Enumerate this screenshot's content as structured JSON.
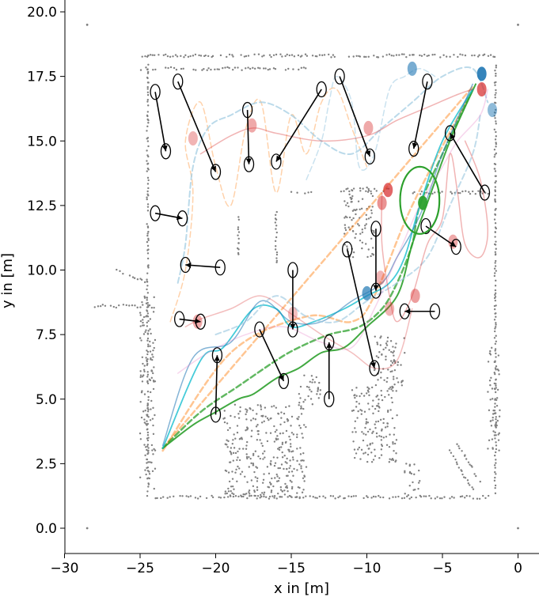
{
  "chart_data": {
    "type": "scatter",
    "title": "",
    "xlabel": "x in [m]",
    "ylabel": "y in [m]",
    "xlim": [
      -30,
      1.5
    ],
    "ylim": [
      -0.8,
      20.5
    ],
    "xticks": [
      -30,
      -25,
      -20,
      -15,
      -10,
      -5,
      0
    ],
    "xtick_labels": [
      "−30",
      "−25",
      "−20",
      "−15",
      "−10",
      "−5",
      "0"
    ],
    "yticks": [
      0.0,
      2.5,
      5.0,
      7.5,
      10.0,
      12.5,
      15.0,
      17.5,
      20.0
    ],
    "ytick_labels": [
      "0.0",
      "2.5",
      "5.0",
      "7.5",
      "10.0",
      "12.5",
      "15.0",
      "17.5",
      "20.0"
    ],
    "grid": false,
    "legend": "none",
    "colors": {
      "map_points": "#808080",
      "blue": "#1f77b4",
      "orange": "#ff7f0e",
      "green": "#2ca02c",
      "red": "#d62728",
      "cyan": "#17becf",
      "pink": "#e377c2",
      "light_blue": "#9ecae1",
      "marker": "#000000"
    },
    "boundary_points": [
      [
        -28.5,
        19.5
      ],
      [
        -28.5,
        0.0
      ],
      [
        0.0,
        19.5
      ],
      [
        0.0,
        0.0
      ]
    ],
    "map_walls": [
      {
        "from": [
          -25.0,
          18.3
        ],
        "to": [
          -1.5,
          18.3
        ]
      },
      {
        "from": [
          -25.0,
          17.8
        ],
        "to": [
          -14.0,
          17.8
        ]
      },
      {
        "from": [
          -24.5,
          18.3
        ],
        "to": [
          -24.5,
          1.3
        ]
      },
      {
        "from": [
          -1.5,
          18.0
        ],
        "to": [
          -1.5,
          1.3
        ]
      },
      {
        "from": [
          -24.0,
          1.2
        ],
        "to": [
          -2.0,
          1.2
        ]
      },
      {
        "from": [
          -26.5,
          10.0
        ],
        "to": [
          -24.5,
          9.5
        ]
      },
      {
        "from": [
          -28.0,
          8.6
        ],
        "to": [
          -24.5,
          8.6
        ]
      },
      {
        "from": [
          -7.0,
          13.0
        ],
        "to": [
          -1.8,
          13.0
        ]
      },
      {
        "from": [
          -12.0,
          13.1
        ],
        "to": [
          -8.5,
          13.1
        ]
      },
      {
        "from": [
          -18.5,
          12.2
        ],
        "to": [
          -18.5,
          10.6
        ]
      },
      {
        "from": [
          -16.0,
          12.2
        ],
        "to": [
          -16.0,
          10.2
        ]
      },
      {
        "from": [
          -4.0,
          3.3
        ],
        "to": [
          -2.5,
          1.8
        ]
      },
      {
        "from": [
          -4.5,
          3.0
        ],
        "to": [
          -3.0,
          1.5
        ]
      },
      {
        "from": [
          -15.0,
          13.0
        ],
        "to": [
          -13.5,
          13.0
        ]
      }
    ],
    "map_blocks": [
      {
        "x": [
          -25.0,
          -24.0
        ],
        "y": [
          1.5,
          9.0
        ]
      },
      {
        "x": [
          -19.5,
          -14.0
        ],
        "y": [
          1.2,
          4.8
        ]
      },
      {
        "x": [
          -11.5,
          -9.5
        ],
        "y": [
          10.5,
          13.2
        ]
      },
      {
        "x": [
          -14.5,
          -13.0
        ],
        "y": [
          4.8,
          6.0
        ]
      },
      {
        "x": [
          -11.0,
          -8.0
        ],
        "y": [
          2.5,
          5.5
        ]
      },
      {
        "x": [
          -9.5,
          -7.5
        ],
        "y": [
          5.5,
          7.5
        ]
      },
      {
        "x": [
          -2.0,
          -1.2
        ],
        "y": [
          3.0,
          7.0
        ]
      },
      {
        "x": [
          -7.5,
          -6.5
        ],
        "y": [
          1.2,
          2.5
        ]
      }
    ],
    "series": [
      {
        "color": "#ff7f0e",
        "alpha": 0.45,
        "dashed": true,
        "width": 2.5,
        "x": [
          -23.5,
          -19.0,
          -14.0,
          -11.0,
          -9.5,
          -7.0,
          -3.0
        ],
        "y": [
          3.0,
          6.8,
          8.2,
          8.0,
          9.0,
          12.5,
          17.0
        ]
      },
      {
        "color": "#ff7f0e",
        "alpha": 0.45,
        "dashed": true,
        "width": 2.5,
        "x": [
          -23.5,
          -3.0
        ],
        "y": [
          3.1,
          17.1
        ]
      },
      {
        "color": "#ff7f0e",
        "alpha": 0.35,
        "dashed": true,
        "width": 1.5,
        "x": [
          -23.0,
          -22.0,
          -21.5,
          -22.0,
          -21.0,
          -20.0,
          -19.0,
          -18.0,
          -17.0,
          -16.0,
          -15.0,
          -14.0,
          -13.0,
          -12.0,
          -11.0,
          -10.0
        ],
        "y": [
          8.0,
          10.0,
          13.0,
          15.0,
          16.5,
          14.0,
          12.5,
          15.5,
          16.5,
          13.0,
          16.0,
          14.5,
          16.5,
          17.0,
          15.5,
          14.0
        ]
      },
      {
        "color": "#2ca02c",
        "alpha": 0.9,
        "dashed": false,
        "width": 2.0,
        "x": [
          -23.5,
          -21.5,
          -20.0,
          -18.5,
          -17.5,
          -16.0,
          -14.5,
          -13.0,
          -11.5,
          -10.0,
          -8.0,
          -7.0,
          -6.0,
          -4.5,
          -2.8
        ],
        "y": [
          3.1,
          4.0,
          4.5,
          5.0,
          5.2,
          5.8,
          6.2,
          6.8,
          7.0,
          7.8,
          9.0,
          11.0,
          12.6,
          15.0,
          17.2
        ]
      },
      {
        "color": "#2ca02c",
        "alpha": 0.75,
        "dashed": true,
        "width": 2.5,
        "x": [
          -23.5,
          -21.0,
          -18.5,
          -16.0,
          -14.5,
          -12.5,
          -10.5,
          -9.0,
          -8.0,
          -7.0,
          -6.5,
          -5.0,
          -3.0
        ],
        "y": [
          3.1,
          4.5,
          5.5,
          6.5,
          7.0,
          7.5,
          7.8,
          8.5,
          9.5,
          11.0,
          12.5,
          14.5,
          17.0
        ]
      },
      {
        "color": "#17becf",
        "alpha": 0.8,
        "dashed": false,
        "width": 1.8,
        "x": [
          -23.5,
          -21.0,
          -19.5,
          -17.5,
          -16.0,
          -15.0,
          -13.5,
          -11.5,
          -10.0,
          -8.5,
          -7.5,
          -6.5,
          -5.0,
          -3.0
        ],
        "y": [
          3.1,
          6.5,
          7.0,
          8.5,
          8.5,
          7.8,
          8.0,
          8.5,
          9.0,
          9.5,
          10.5,
          12.5,
          15.0,
          17.0
        ]
      },
      {
        "color": "#1f77b4",
        "alpha": 0.55,
        "dashed": false,
        "width": 1.5,
        "x": [
          -23.5,
          -21.5,
          -19.0,
          -17.0,
          -15.0,
          -13.0,
          -11.0,
          -9.0,
          -8.0,
          -7.0,
          -6.0,
          -5.0,
          -3.0
        ],
        "y": [
          3.2,
          6.6,
          7.2,
          8.8,
          8.0,
          8.0,
          8.8,
          9.5,
          10.5,
          11.5,
          12.8,
          14.5,
          17.2
        ]
      },
      {
        "color": "#9ecae1",
        "alpha": 0.7,
        "dashed": true,
        "width": 2.0,
        "x": [
          -22.5,
          -22.0,
          -21.5,
          -20.5,
          -19.0,
          -17.0,
          -15.0,
          -13.0,
          -11.0,
          -9.0,
          -7.0,
          -5.0,
          -3.0,
          -2.0
        ],
        "y": [
          9.5,
          11.0,
          14.0,
          15.5,
          16.0,
          16.5,
          16.0,
          15.0,
          14.5,
          15.5,
          16.5,
          17.5,
          17.8,
          16.5
        ]
      },
      {
        "color": "#9ecae1",
        "alpha": 0.65,
        "dashed": true,
        "width": 2.0,
        "x": [
          -20.0,
          -18.0,
          -16.0,
          -14.0,
          -12.0,
          -10.0,
          -8.0,
          -6.0,
          -4.5,
          -3.0,
          -2.5
        ],
        "y": [
          7.5,
          8.0,
          9.0,
          8.2,
          8.0,
          8.8,
          9.5,
          10.5,
          12.5,
          14.5,
          16.0
        ]
      },
      {
        "color": "#9ecae1",
        "alpha": 0.55,
        "dashed": true,
        "width": 1.5,
        "x": [
          -14.0,
          -13.0,
          -12.5,
          -12.0,
          -11.0,
          -10.5,
          -9.5,
          -8.5,
          -7.5,
          -6.5,
          -5.5
        ],
        "y": [
          13.5,
          15.0,
          16.5,
          17.5,
          16.5,
          14.0,
          14.5,
          17.0,
          17.5,
          17.8,
          17.5
        ]
      },
      {
        "color": "#d62728",
        "alpha": 0.35,
        "dashed": false,
        "width": 1.5,
        "x": [
          -21.0,
          -19.0,
          -17.5,
          -16.0,
          -13.0,
          -10.0,
          -8.0,
          -6.0,
          -4.0,
          -3.0
        ],
        "y": [
          14.5,
          15.2,
          15.5,
          15.3,
          15.0,
          15.2,
          15.8,
          16.3,
          16.8,
          17.0
        ]
      },
      {
        "color": "#d62728",
        "alpha": 0.35,
        "dashed": false,
        "width": 1.5,
        "x": [
          -9.0,
          -9.0,
          -8.5,
          -8.0,
          -7.0,
          -6.0,
          -5.0,
          -4.5,
          -4.0,
          -3.5,
          -2.5,
          -2.0,
          -2.5,
          -3.5
        ],
        "y": [
          13.0,
          11.0,
          9.0,
          8.0,
          9.0,
          11.0,
          12.0,
          14.5,
          13.0,
          11.0,
          10.5,
          11.5,
          13.5,
          15.0
        ]
      },
      {
        "color": "#d62728",
        "alpha": 0.3,
        "dashed": false,
        "width": 1.5,
        "x": [
          -22.0,
          -21.0,
          -19.0,
          -17.0,
          -15.0,
          -13.0,
          -11.0,
          -9.5,
          -8.0,
          -7.0
        ],
        "y": [
          7.8,
          8.1,
          8.5,
          9.0,
          8.3,
          7.5,
          6.8,
          6.2,
          6.5,
          8.5
        ]
      },
      {
        "color": "#e377c2",
        "alpha": 0.3,
        "dashed": false,
        "width": 1.5,
        "x": [
          -22.5,
          -20.5,
          -18.0,
          -15.5,
          -13.0,
          -11.0,
          -9.5,
          -8.0,
          -6.5,
          -5.0,
          -4.0,
          -2.5,
          -2.0
        ],
        "y": [
          6.0,
          6.8,
          7.5,
          7.8,
          7.2,
          7.0,
          8.5,
          10.5,
          12.5,
          14.0,
          15.0,
          16.0,
          17.0
        ]
      }
    ],
    "agents": [
      {
        "x": -7.0,
        "y": 17.8,
        "color": "#1f77b4",
        "alpha": 0.6
      },
      {
        "x": -2.4,
        "y": 17.6,
        "color": "#1f77b4",
        "alpha": 0.9
      },
      {
        "x": -1.7,
        "y": 16.2,
        "color": "#1f77b4",
        "alpha": 0.5
      },
      {
        "x": -10.0,
        "y": 9.1,
        "color": "#1f77b4",
        "alpha": 0.7
      },
      {
        "x": -21.5,
        "y": 15.1,
        "color": "#d62728",
        "alpha": 0.35
      },
      {
        "x": -17.6,
        "y": 15.6,
        "color": "#d62728",
        "alpha": 0.4
      },
      {
        "x": -9.9,
        "y": 15.5,
        "color": "#d62728",
        "alpha": 0.4
      },
      {
        "x": -8.6,
        "y": 13.1,
        "color": "#d62728",
        "alpha": 0.7
      },
      {
        "x": -9.0,
        "y": 12.6,
        "color": "#d62728",
        "alpha": 0.5
      },
      {
        "x": -4.3,
        "y": 11.1,
        "color": "#d62728",
        "alpha": 0.4
      },
      {
        "x": -9.1,
        "y": 9.7,
        "color": "#d62728",
        "alpha": 0.35
      },
      {
        "x": -6.8,
        "y": 9.0,
        "color": "#d62728",
        "alpha": 0.45
      },
      {
        "x": -8.5,
        "y": 8.5,
        "color": "#d62728",
        "alpha": 0.35
      },
      {
        "x": -14.9,
        "y": 8.3,
        "color": "#d62728",
        "alpha": 0.3
      },
      {
        "x": -21.2,
        "y": 8.0,
        "color": "#d62728",
        "alpha": 0.4
      },
      {
        "x": -6.3,
        "y": 12.6,
        "color": "#2ca02c",
        "alpha": 0.95
      },
      {
        "x": -2.4,
        "y": 17.0,
        "color": "#d62728",
        "alpha": 0.7
      }
    ],
    "goal_circle": {
      "x": -6.5,
      "y": 12.7,
      "r": 1.3,
      "color": "#2ca02c"
    },
    "arrows": [
      {
        "from": [
          -24.0,
          16.9
        ],
        "to": [
          -23.3,
          14.6
        ]
      },
      {
        "from": [
          -22.5,
          17.3
        ],
        "to": [
          -20.0,
          13.8
        ]
      },
      {
        "from": [
          -17.9,
          16.2
        ],
        "to": [
          -17.8,
          14.1
        ]
      },
      {
        "from": [
          -13.0,
          17.0
        ],
        "to": [
          -16.0,
          14.2
        ]
      },
      {
        "from": [
          -11.8,
          17.5
        ],
        "to": [
          -9.8,
          14.4
        ]
      },
      {
        "from": [
          -6.0,
          17.3
        ],
        "to": [
          -6.9,
          14.7
        ]
      },
      {
        "from": [
          -2.2,
          13.0
        ],
        "to": [
          -4.5,
          15.3
        ]
      },
      {
        "from": [
          -24.0,
          12.2
        ],
        "to": [
          -22.2,
          12.0
        ]
      },
      {
        "from": [
          -19.7,
          10.1
        ],
        "to": [
          -22.0,
          10.2
        ]
      },
      {
        "from": [
          -6.1,
          11.7
        ],
        "to": [
          -4.1,
          10.9
        ]
      },
      {
        "from": [
          -9.4,
          11.6
        ],
        "to": [
          -9.4,
          9.2
        ]
      },
      {
        "from": [
          -22.4,
          8.1
        ],
        "to": [
          -21.0,
          8.0
        ]
      },
      {
        "from": [
          -5.5,
          8.4
        ],
        "to": [
          -7.5,
          8.4
        ]
      },
      {
        "from": [
          -14.9,
          10.0
        ],
        "to": [
          -14.9,
          7.7
        ]
      },
      {
        "from": [
          -11.3,
          10.8
        ],
        "to": [
          -9.5,
          6.2
        ]
      },
      {
        "from": [
          -17.1,
          7.7
        ],
        "to": [
          -15.5,
          5.7
        ]
      },
      {
        "from": [
          -12.5,
          5.0
        ],
        "to": [
          -12.5,
          7.2
        ]
      },
      {
        "from": [
          -20.0,
          4.4
        ],
        "to": [
          -19.9,
          6.7
        ]
      }
    ]
  }
}
